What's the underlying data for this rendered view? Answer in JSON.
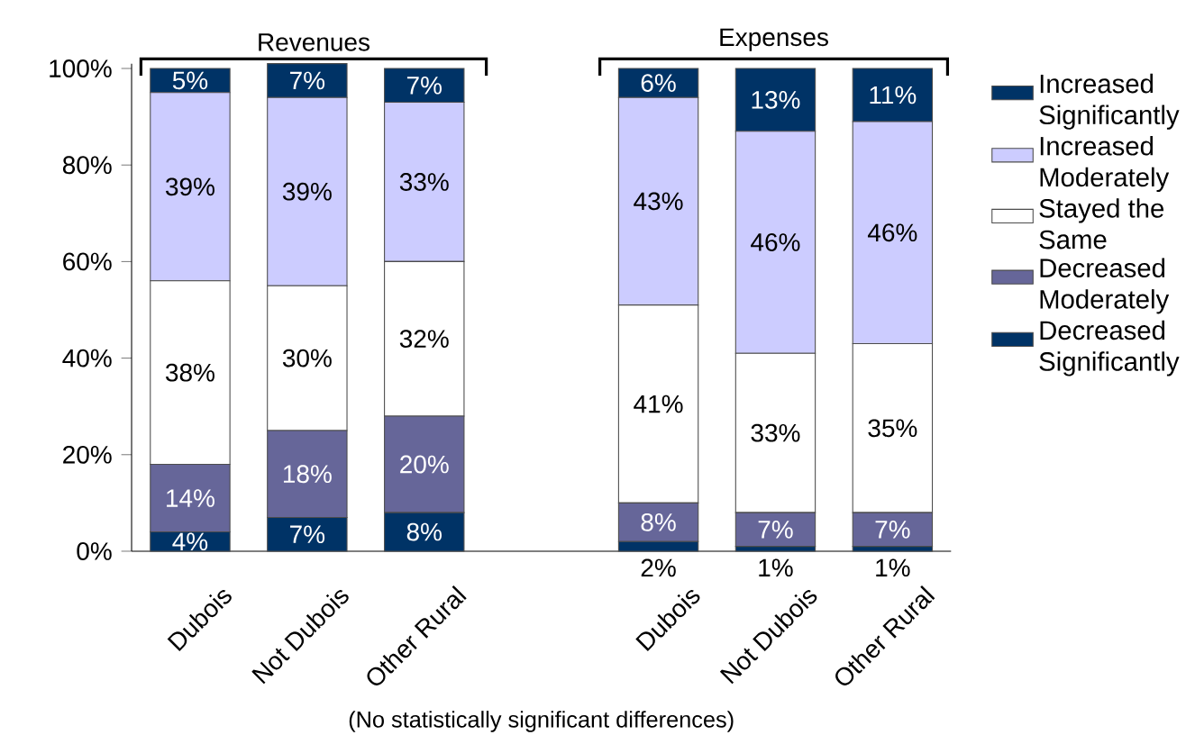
{
  "chart_data": {
    "type": "bar",
    "stacked": true,
    "categories": [
      "Dubois",
      "Not Dubois",
      "Other Rural",
      null,
      "Dubois",
      "Not Dubois",
      "Other Rural"
    ],
    "series": [
      {
        "name": "Decreased Significantly",
        "color": "#003366",
        "values": [
          4,
          7,
          8,
          null,
          2,
          1,
          1
        ],
        "value_labels": [
          "4%",
          "7%",
          "8%",
          null,
          "2%",
          "1%",
          "1%"
        ]
      },
      {
        "name": "Decreased Moderately",
        "color": "#666699",
        "values": [
          14,
          18,
          20,
          null,
          8,
          7,
          7
        ],
        "value_labels": [
          "14%",
          "18%",
          "20%",
          null,
          "8%",
          "7%",
          "7%"
        ]
      },
      {
        "name": "Stayed the Same",
        "color": "#ffffff",
        "values": [
          38,
          30,
          32,
          null,
          41,
          33,
          35
        ],
        "value_labels": [
          "38%",
          "30%",
          "32%",
          null,
          "41%",
          "33%",
          "35%"
        ]
      },
      {
        "name": "Increased Moderately",
        "color": "#ccccff",
        "values": [
          39,
          39,
          33,
          null,
          43,
          46,
          46
        ],
        "value_labels": [
          "39%",
          "39%",
          "33%",
          null,
          "43%",
          "46%",
          "46%"
        ]
      },
      {
        "name": "Increased Significantly",
        "color": "#003366",
        "values": [
          5,
          7,
          7,
          null,
          6,
          13,
          11
        ],
        "value_labels": [
          "5%",
          "7%",
          "7%",
          null,
          "6%",
          "13%",
          "11%"
        ]
      }
    ],
    "ylim": [
      0,
      101
    ],
    "yticks": [
      {
        "value": 0,
        "label": "0%"
      },
      {
        "value": 20,
        "label": "20%"
      },
      {
        "value": 40,
        "label": "40%"
      },
      {
        "value": 60,
        "label": "60%"
      },
      {
        "value": 80,
        "label": "80%"
      },
      {
        "value": 100,
        "label": "100%"
      }
    ],
    "grid": false,
    "legend": "right",
    "annotations": [
      "Revenues",
      "Expenses",
      "(No statistically significant differences)"
    ]
  }
}
